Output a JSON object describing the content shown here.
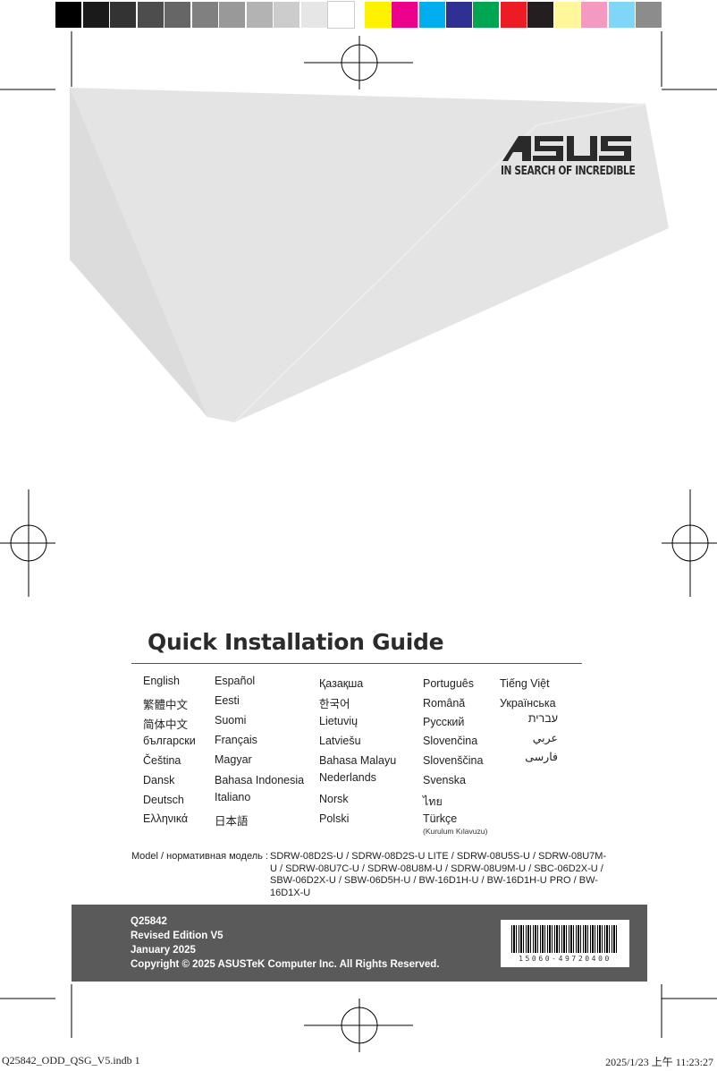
{
  "color_bar": {
    "grays": [
      "#000000",
      "#1a1a1a",
      "#333333",
      "#4d4d4d",
      "#666666",
      "#808080",
      "#999999",
      "#b3b3b3",
      "#cccccc",
      "#e6e6e6",
      "#ffffff"
    ],
    "colors": [
      "#fff200",
      "#ec008c",
      "#00aeef",
      "#2e3192",
      "#00a651",
      "#ed1c24",
      "#231f20",
      "#fff799",
      "#f49ac1",
      "#7fd6f7",
      "#8c8c8c"
    ]
  },
  "brand": {
    "logo": "ASUS",
    "tagline": "IN SEARCH OF INCREDIBLE"
  },
  "title": "Quick Installation Guide",
  "languages": {
    "col1": [
      "English",
      "繁體中文",
      "简体中文",
      "български",
      "Čeština",
      "Dansk",
      "Deutsch",
      "Ελληνικά"
    ],
    "col2": [
      "Español",
      "Eesti",
      "Suomi",
      "Français",
      "Magyar",
      "Bahasa Indonesia",
      "Italiano",
      "日本語"
    ],
    "col3": [
      "Қазақша",
      "한국어",
      "Lietuvių",
      "Latviešu",
      "Bahasa Malayu",
      "Nederlands",
      "Norsk",
      "Polski"
    ],
    "col4": [
      "Português",
      "Română",
      "Русский",
      "Slovenčina",
      "Slovenščina",
      "Svenska",
      "ไทย",
      "Türkçe"
    ],
    "col4_note": "(Kurulum Kılavuzu)",
    "col5": [
      "Tiếng Việt",
      "Українська",
      "עברית",
      "عربي",
      "فارسی"
    ]
  },
  "model": {
    "label": "Model / нормативная модель :",
    "values": "SDRW-08D2S-U / SDRW-08D2S-U LITE / SDRW-08U5S-U / SDRW-08U7M-U / SDRW-08U7C-U / SDRW-08U8M-U / SDRW-08U9M-U / SBC-06D2X-U / SBW-06D2X-U / SBW-06D5H-U / BW-16D1H-U / BW-16D1H-U PRO / BW-16D1X-U"
  },
  "footer": {
    "code": "Q25842",
    "edition": "Revised Edition V5",
    "date": "January 2025",
    "copyright": "Copyright © 2025 ASUSTeK Computer Inc. All Rights Reserved.",
    "barcode_number": "15060-49720400"
  },
  "slug": {
    "file": "Q25842_ODD_QSG_V5.indb   1",
    "timestamp": "2025/1/23   上午 11:23:27"
  }
}
